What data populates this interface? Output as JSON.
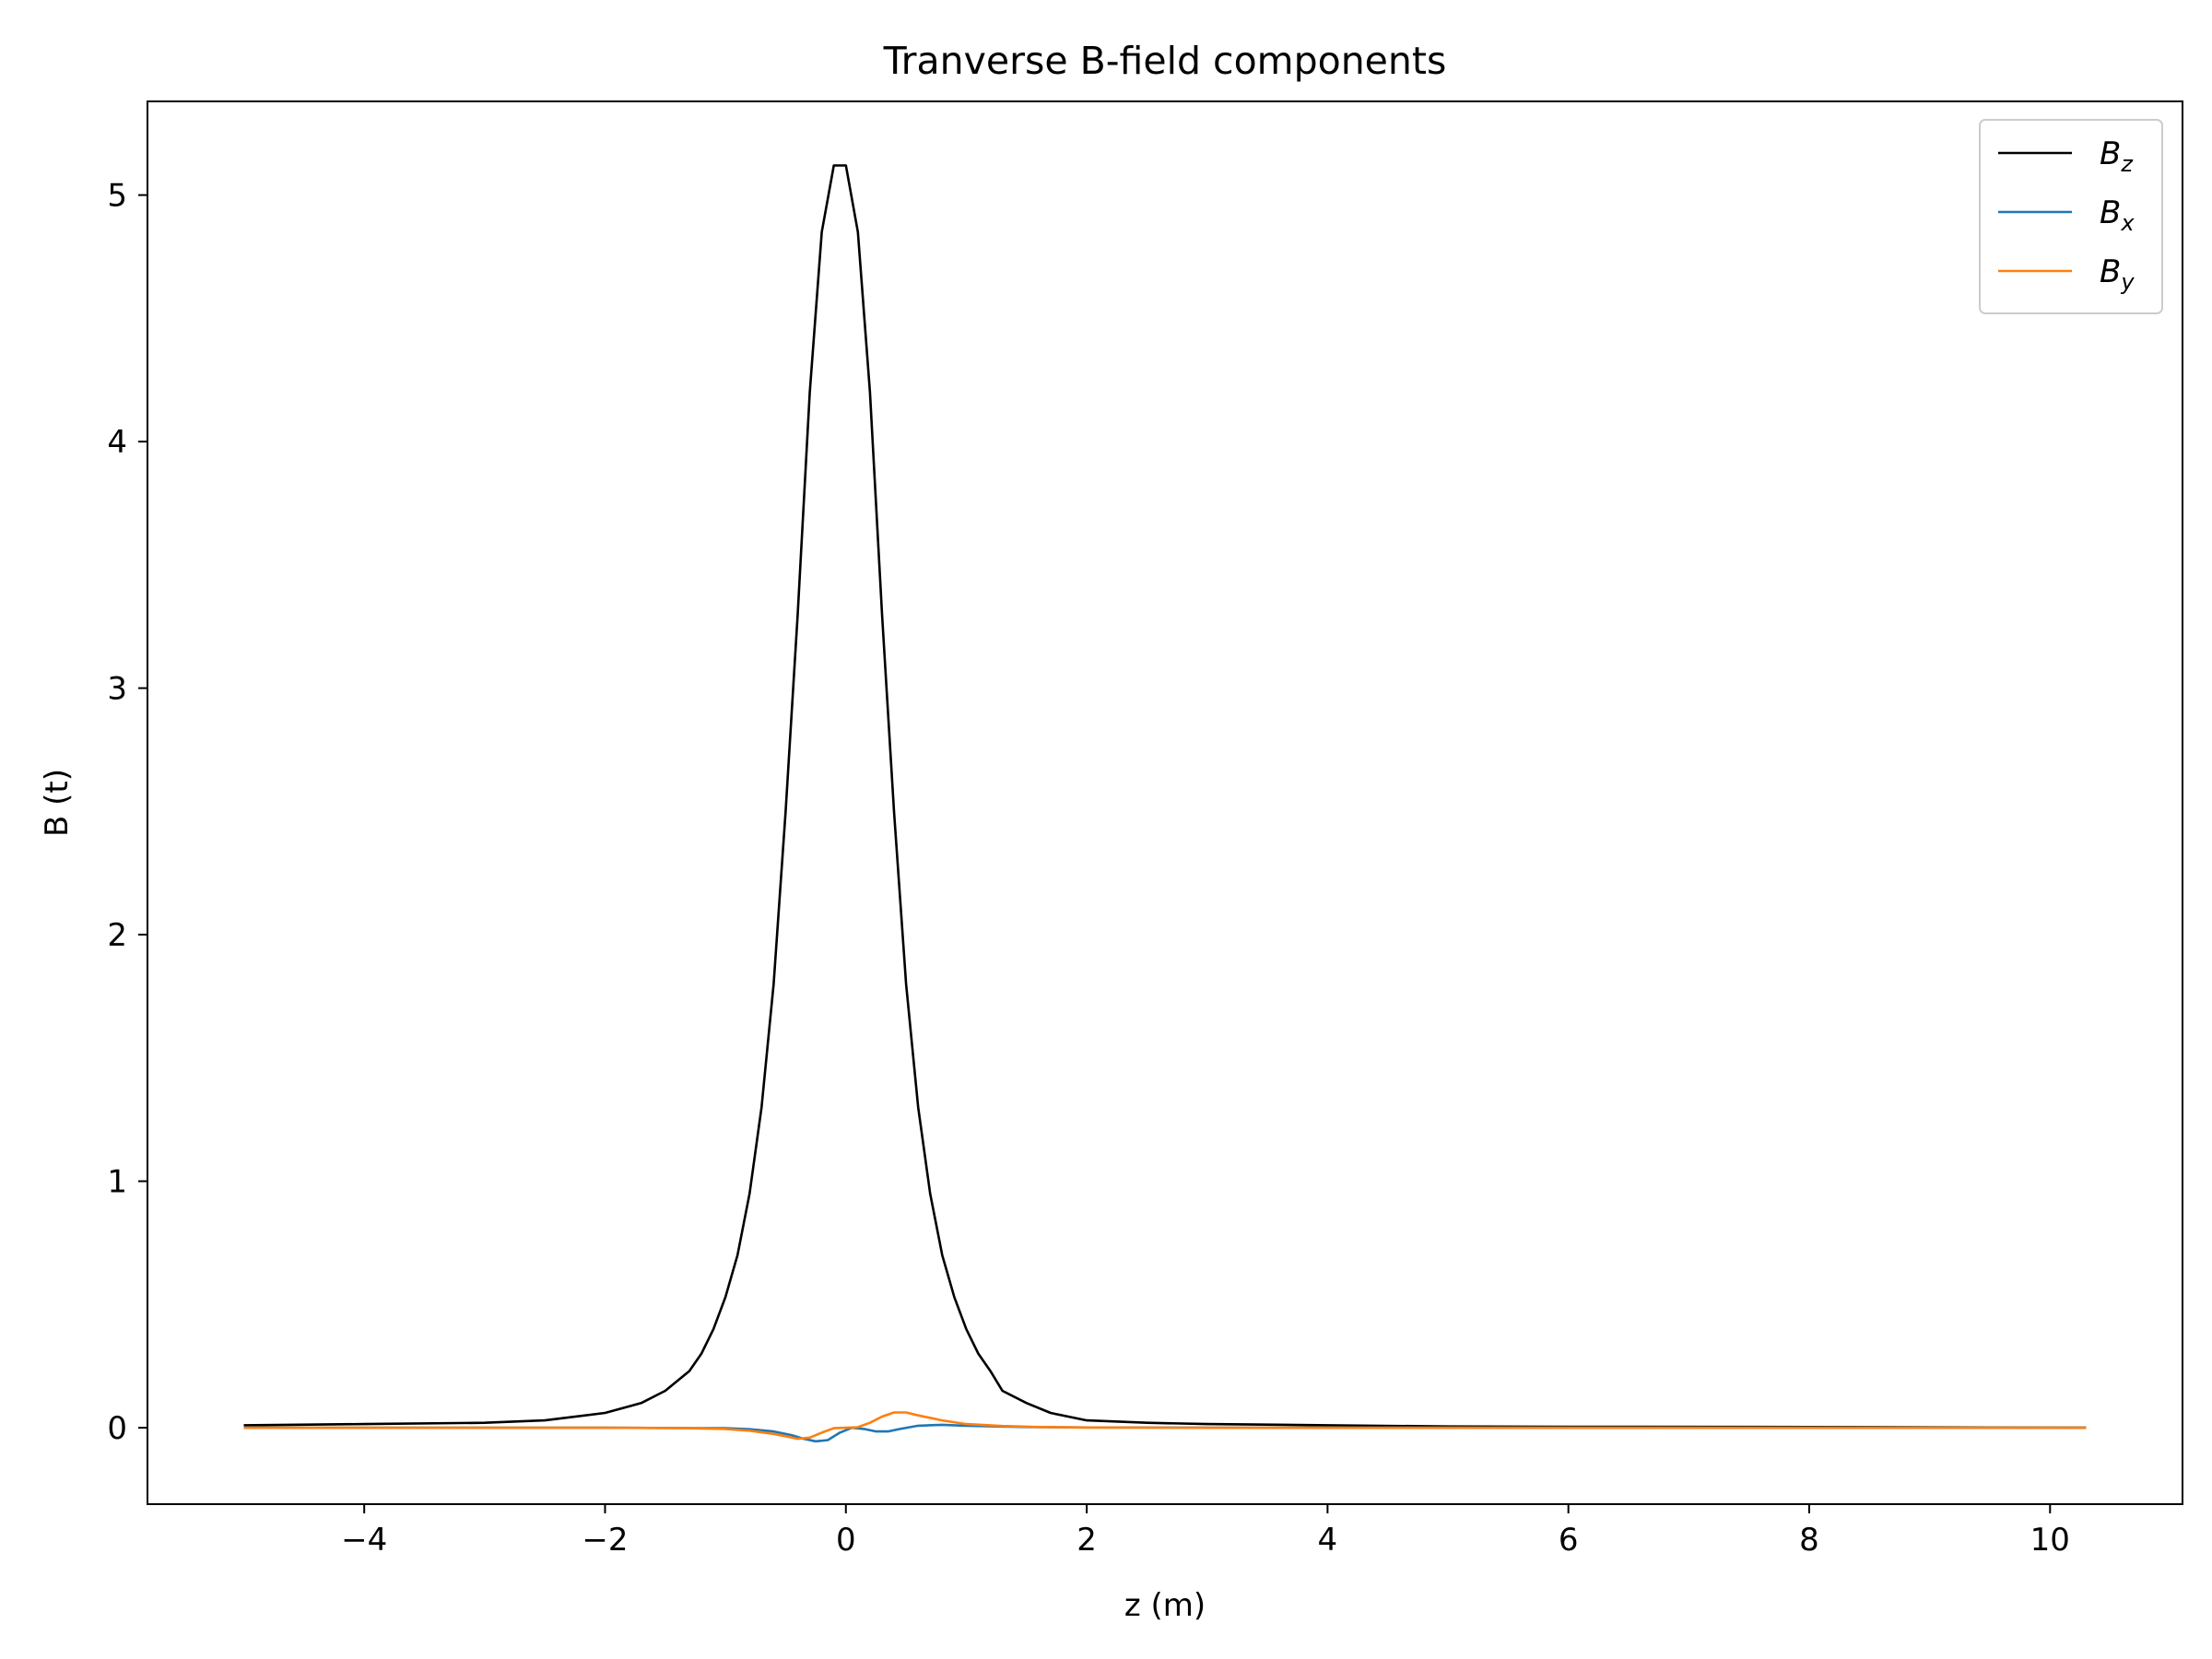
{
  "chart_data": {
    "type": "line",
    "title": "Tranverse B-field components",
    "xlabel": "z (m)",
    "ylabel": "B (t)",
    "xlim": [
      -5.8,
      11.1
    ],
    "ylim": [
      -0.31,
      5.38
    ],
    "xticks": [
      -4,
      -2,
      0,
      2,
      4,
      6,
      8,
      10
    ],
    "xtick_labels": [
      "−4",
      "−2",
      "0",
      "2",
      "4",
      "6",
      "8",
      "10"
    ],
    "yticks": [
      0,
      1,
      2,
      3,
      4,
      5
    ],
    "ytick_labels": [
      "0",
      "1",
      "2",
      "3",
      "4",
      "5"
    ],
    "grid": false,
    "legend_position": "top-right",
    "series": [
      {
        "name": "B_z",
        "legend_main": "B",
        "legend_sub": "z",
        "color": "#000000",
        "x": [
          -5.0,
          -4.0,
          -3.0,
          -2.5,
          -2.0,
          -1.7,
          -1.5,
          -1.3,
          -1.2,
          -1.1,
          -1.0,
          -0.9,
          -0.8,
          -0.7,
          -0.6,
          -0.5,
          -0.4,
          -0.3,
          -0.2,
          -0.1,
          0.0,
          0.1,
          0.2,
          0.3,
          0.4,
          0.5,
          0.6,
          0.7,
          0.8,
          0.9,
          1.0,
          1.1,
          1.2,
          1.3,
          1.5,
          1.7,
          2.0,
          2.5,
          3.0,
          4.0,
          5.0,
          6.0,
          8.0,
          10.3
        ],
        "y": [
          0.01,
          0.015,
          0.02,
          0.03,
          0.06,
          0.1,
          0.15,
          0.23,
          0.3,
          0.4,
          0.53,
          0.7,
          0.95,
          1.3,
          1.8,
          2.5,
          3.3,
          4.2,
          4.85,
          5.12,
          5.12,
          4.85,
          4.2,
          3.3,
          2.5,
          1.8,
          1.3,
          0.95,
          0.7,
          0.53,
          0.4,
          0.3,
          0.23,
          0.15,
          0.1,
          0.06,
          0.03,
          0.02,
          0.015,
          0.01,
          0.005,
          0.004,
          0.003,
          0.0
        ]
      },
      {
        "name": "B_x",
        "legend_main": "B",
        "legend_sub": "x",
        "color": "#1f77b4",
        "x": [
          -5.0,
          -2.0,
          -1.0,
          -0.8,
          -0.6,
          -0.45,
          -0.35,
          -0.25,
          -0.15,
          -0.05,
          0.05,
          0.15,
          0.25,
          0.35,
          0.45,
          0.6,
          0.8,
          1.0,
          1.5,
          2.0,
          4.0,
          10.3
        ],
        "y": [
          0.0,
          0.0,
          -0.002,
          -0.006,
          -0.015,
          -0.03,
          -0.045,
          -0.055,
          -0.05,
          -0.02,
          0.0,
          -0.005,
          -0.015,
          -0.015,
          -0.005,
          0.008,
          0.012,
          0.008,
          0.003,
          0.001,
          0.0,
          0.0
        ]
      },
      {
        "name": "B_y",
        "legend_main": "B",
        "legend_sub": "y",
        "color": "#ff7f0e",
        "x": [
          -5.0,
          -2.0,
          -1.3,
          -1.0,
          -0.8,
          -0.6,
          -0.5,
          -0.4,
          -0.3,
          -0.2,
          -0.1,
          0.0,
          0.1,
          0.2,
          0.3,
          0.4,
          0.5,
          0.6,
          0.8,
          1.0,
          1.3,
          1.6,
          2.0,
          3.0,
          5.0,
          10.3
        ],
        "y": [
          0.0,
          0.0,
          -0.002,
          -0.005,
          -0.012,
          -0.025,
          -0.035,
          -0.045,
          -0.04,
          -0.02,
          -0.002,
          0.0,
          0.002,
          0.02,
          0.045,
          0.062,
          0.062,
          0.05,
          0.03,
          0.015,
          0.007,
          0.003,
          0.001,
          0.0,
          0.0,
          0.0
        ]
      }
    ]
  }
}
